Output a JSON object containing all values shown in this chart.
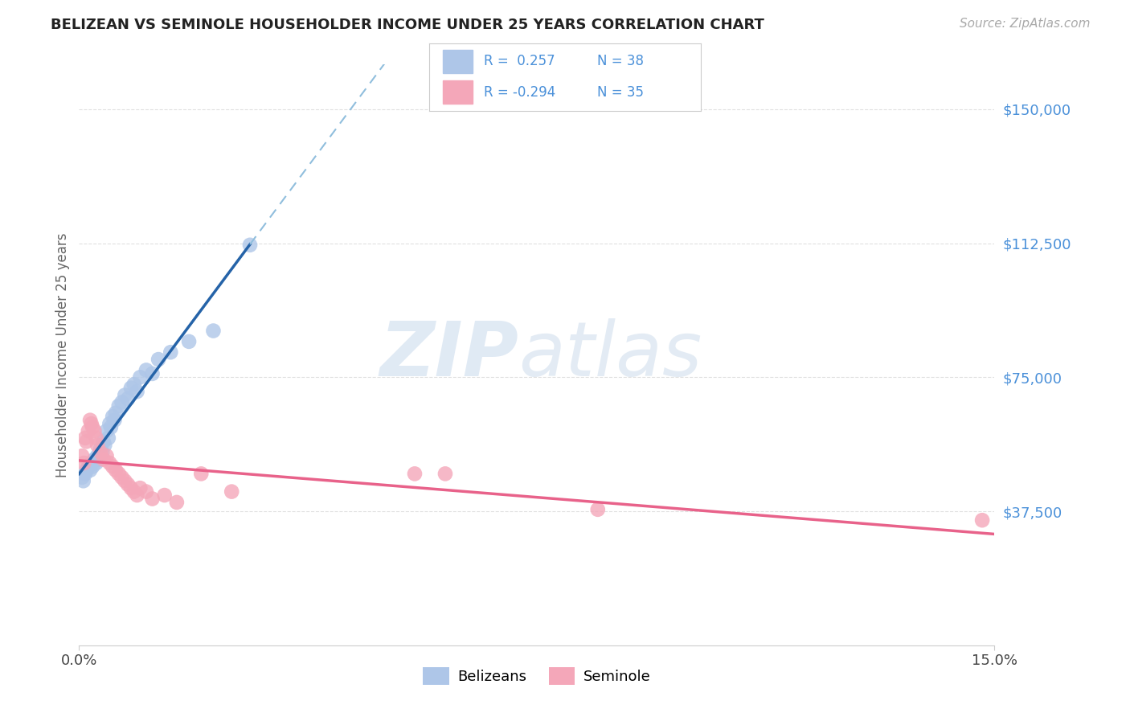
{
  "title": "BELIZEAN VS SEMINOLE HOUSEHOLDER INCOME UNDER 25 YEARS CORRELATION CHART",
  "source": "Source: ZipAtlas.com",
  "ylabel": "Householder Income Under 25 years",
  "xlim": [
    0.0,
    15.0
  ],
  "ylim": [
    0,
    162500
  ],
  "yticks": [
    37500,
    75000,
    112500,
    150000
  ],
  "ytick_labels": [
    "$37,500",
    "$75,000",
    "$112,500",
    "$150,000"
  ],
  "belizean_color": "#aec6e8",
  "seminole_color": "#f4a7b9",
  "trend_blue_solid_color": "#2563a8",
  "trend_blue_dash_color": "#90bedd",
  "trend_pink_color": "#e8628a",
  "background_color": "#ffffff",
  "grid_color": "#e0e0e0",
  "title_color": "#222222",
  "axis_label_color": "#666666",
  "ytick_color": "#4a90d9",
  "legend_value_color": "#4a90d9",
  "belizean_x": [
    0.05,
    0.07,
    0.1,
    0.12,
    0.15,
    0.18,
    0.2,
    0.22,
    0.25,
    0.28,
    0.3,
    0.32,
    0.35,
    0.38,
    0.4,
    0.42,
    0.45,
    0.48,
    0.5,
    0.52,
    0.55,
    0.58,
    0.6,
    0.65,
    0.7,
    0.75,
    0.8,
    0.85,
    0.9,
    0.95,
    1.0,
    1.1,
    1.2,
    1.3,
    1.5,
    1.8,
    2.2,
    2.8
  ],
  "belizean_y": [
    47000,
    46000,
    48000,
    49000,
    50000,
    49000,
    51000,
    50000,
    52000,
    51000,
    53000,
    52000,
    55000,
    54000,
    57000,
    56000,
    60000,
    58000,
    62000,
    61000,
    64000,
    63000,
    65000,
    67000,
    68000,
    70000,
    69000,
    72000,
    73000,
    71000,
    75000,
    77000,
    76000,
    80000,
    82000,
    85000,
    88000,
    112000
  ],
  "seminole_x": [
    0.05,
    0.08,
    0.1,
    0.12,
    0.15,
    0.18,
    0.2,
    0.22,
    0.25,
    0.28,
    0.3,
    0.35,
    0.4,
    0.45,
    0.5,
    0.55,
    0.6,
    0.65,
    0.7,
    0.75,
    0.8,
    0.85,
    0.9,
    0.95,
    1.0,
    1.1,
    1.2,
    1.4,
    1.6,
    2.0,
    2.5,
    5.5,
    6.0,
    8.5,
    14.8
  ],
  "seminole_y": [
    53000,
    51000,
    58000,
    57000,
    60000,
    63000,
    62000,
    61000,
    60000,
    58000,
    56000,
    54000,
    52000,
    53000,
    51000,
    50000,
    49000,
    48000,
    47000,
    46000,
    45000,
    44000,
    43000,
    42000,
    44000,
    43000,
    41000,
    42000,
    40000,
    48000,
    43000,
    48000,
    48000,
    38000,
    35000
  ]
}
